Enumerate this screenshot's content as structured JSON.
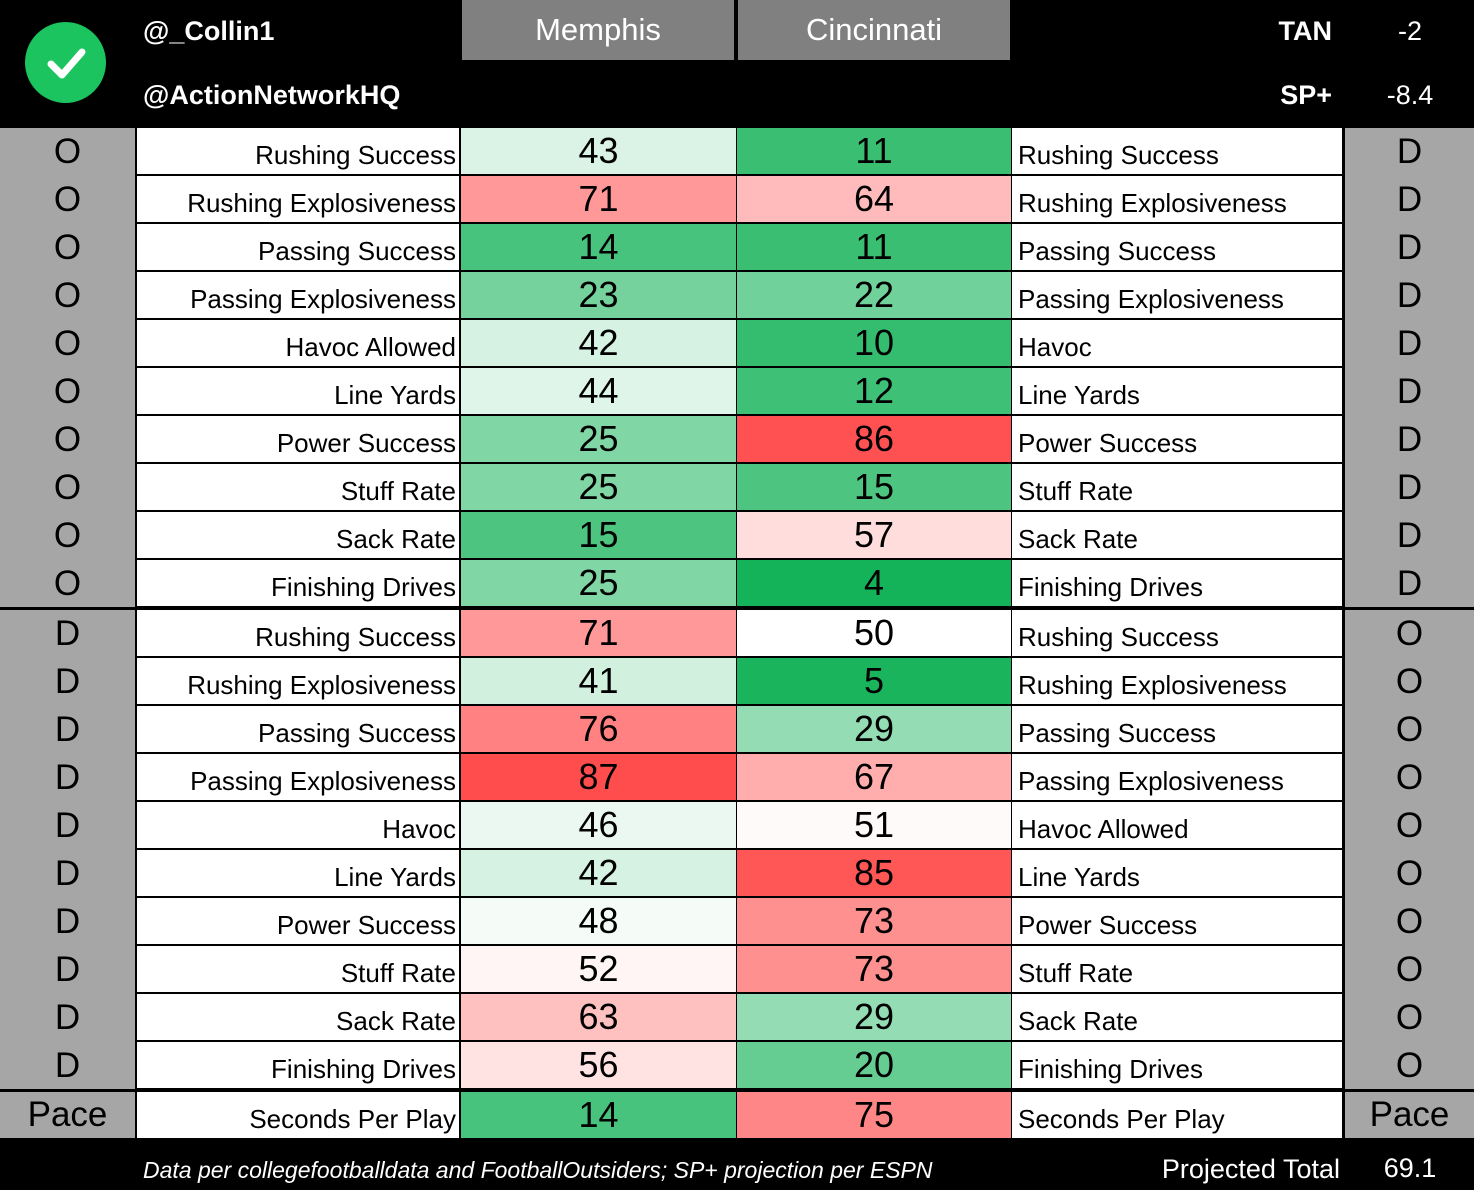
{
  "header": {
    "handle_1": "@_Collin1",
    "handle_2": "@ActionNetworkHQ",
    "team_left": "Memphis",
    "team_right": "Cincinnati",
    "tan_label": "TAN",
    "tan_value": "-2",
    "sp_label": "SP+",
    "sp_value": "-8.4"
  },
  "icons": {
    "check": "check-circle-icon"
  },
  "colors": {
    "best_green": "#10b155",
    "neutral_white": "#ffffff",
    "worst_red": "#ff4c4c",
    "side_gray": "#a6a6a6",
    "team_header_gray": "#808080"
  },
  "sections": [
    {
      "left_side": "O",
      "right_side": "D",
      "rows": [
        {
          "left_label": "Rushing Success",
          "left": 43,
          "right": 11,
          "right_label": "Rushing Success"
        },
        {
          "left_label": "Rushing Explosiveness",
          "left": 71,
          "right": 64,
          "right_label": "Rushing Explosiveness"
        },
        {
          "left_label": "Passing Success",
          "left": 14,
          "right": 11,
          "right_label": "Passing Success"
        },
        {
          "left_label": "Passing Explosiveness",
          "left": 23,
          "right": 22,
          "right_label": "Passing Explosiveness"
        },
        {
          "left_label": "Havoc Allowed",
          "left": 42,
          "right": 10,
          "right_label": "Havoc"
        },
        {
          "left_label": "Line Yards",
          "left": 44,
          "right": 12,
          "right_label": "Line Yards"
        },
        {
          "left_label": "Power Success",
          "left": 25,
          "right": 86,
          "right_label": "Power Success"
        },
        {
          "left_label": "Stuff Rate",
          "left": 25,
          "right": 15,
          "right_label": "Stuff Rate"
        },
        {
          "left_label": "Sack Rate",
          "left": 15,
          "right": 57,
          "right_label": "Sack Rate"
        },
        {
          "left_label": "Finishing Drives",
          "left": 25,
          "right": 4,
          "right_label": "Finishing Drives"
        }
      ]
    },
    {
      "left_side": "D",
      "right_side": "O",
      "rows": [
        {
          "left_label": "Rushing Success",
          "left": 71,
          "right": 50,
          "right_label": "Rushing Success"
        },
        {
          "left_label": "Rushing Explosiveness",
          "left": 41,
          "right": 5,
          "right_label": "Rushing Explosiveness"
        },
        {
          "left_label": "Passing Success",
          "left": 76,
          "right": 29,
          "right_label": "Passing Success"
        },
        {
          "left_label": "Passing Explosiveness",
          "left": 87,
          "right": 67,
          "right_label": "Passing Explosiveness"
        },
        {
          "left_label": "Havoc",
          "left": 46,
          "right": 51,
          "right_label": "Havoc Allowed"
        },
        {
          "left_label": "Line Yards",
          "left": 42,
          "right": 85,
          "right_label": "Line Yards"
        },
        {
          "left_label": "Power Success",
          "left": 48,
          "right": 73,
          "right_label": "Power Success"
        },
        {
          "left_label": "Stuff Rate",
          "left": 52,
          "right": 73,
          "right_label": "Stuff Rate"
        },
        {
          "left_label": "Sack Rate",
          "left": 63,
          "right": 29,
          "right_label": "Sack Rate"
        },
        {
          "left_label": "Finishing Drives",
          "left": 56,
          "right": 20,
          "right_label": "Finishing Drives"
        }
      ]
    }
  ],
  "pace": {
    "left_side": "Pace",
    "right_side": "Pace",
    "left_label": "Seconds Per Play",
    "left": 14,
    "right": 75,
    "right_label": "Seconds Per Play"
  },
  "footer": {
    "credit": "Data per collegefootballdata and FootballOutsiders; SP+ projection per ESPN",
    "total_label": "Projected Total",
    "total_value": "69.1"
  }
}
